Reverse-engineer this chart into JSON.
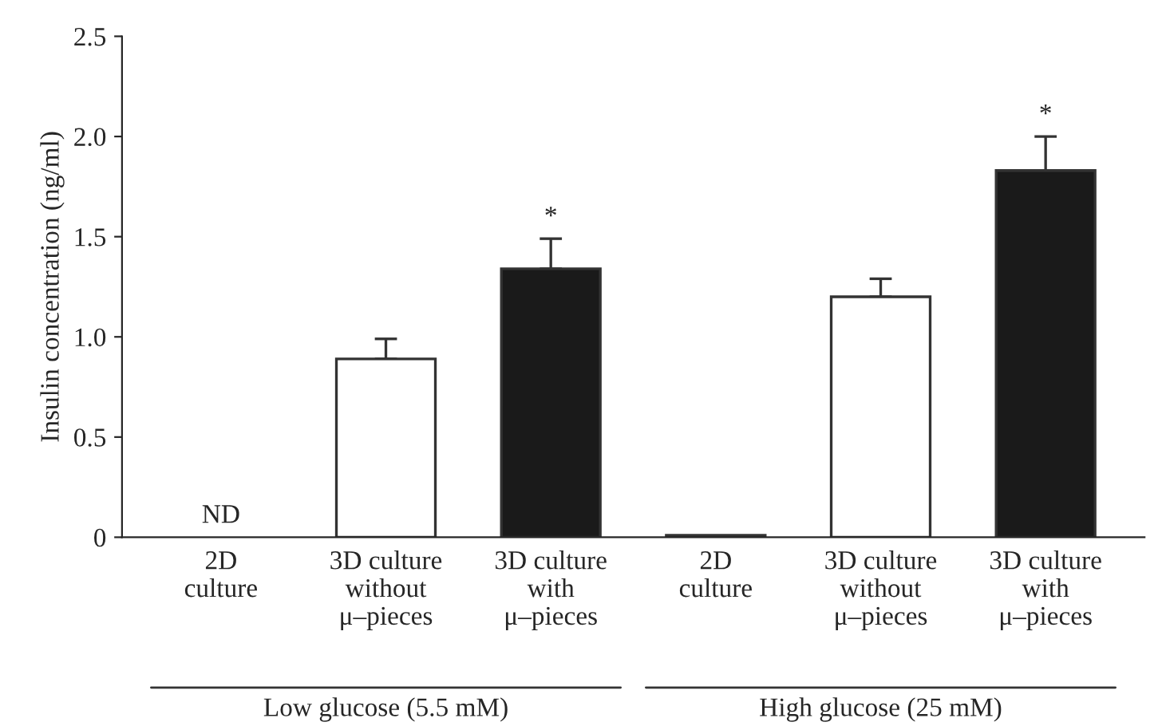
{
  "chart_data": {
    "type": "bar",
    "ylabel": "Insulin concentration (ng/ml)",
    "categories": [
      "2D\nculture",
      "3D culture\nwithout\nμ–pieces",
      "3D culture\nwith\nμ–pieces",
      "2D\nculture",
      "3D culture\nwithout\nμ–pieces",
      "3D culture\nwith\nμ–pieces"
    ],
    "values": [
      null,
      0.89,
      1.34,
      0.01,
      1.2,
      1.83
    ],
    "errors": [
      null,
      0.1,
      0.15,
      null,
      0.09,
      0.17
    ],
    "colors": [
      "#ffffff",
      "#ffffff",
      "#1a1a1a",
      "#1a1a1a",
      "#ffffff",
      "#1a1a1a"
    ],
    "value_labels": [
      "ND",
      null,
      "*",
      null,
      null,
      "*"
    ],
    "ylim": [
      0,
      2.5
    ],
    "yticks": [
      0,
      0.5,
      {
        "value": 1.0,
        "label": "1.0"
      },
      1.5,
      {
        "value": 2.0,
        "label": "2.0"
      },
      2.5
    ],
    "annotations": [
      "Low glucose (5.5 mM)",
      "High glucose (25 mM)"
    ],
    "grid": false
  }
}
